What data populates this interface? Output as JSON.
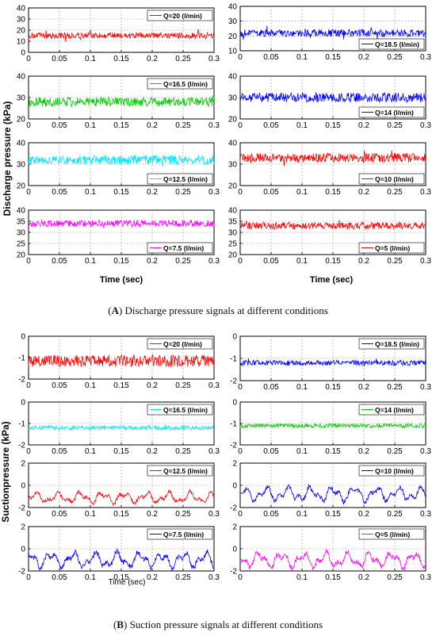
{
  "captions": {
    "a_label": "A",
    "a_text": " Discharge pressure signals at different conditions",
    "b_label": "B",
    "b_text": " Suction pressure signals at different conditions"
  },
  "shared_labels": {
    "discharge_ylabel": "Discharge pressure (kPa)",
    "suction_ylabel": "Suctionpressure (kPa)",
    "xlabel": "Time (sec)"
  },
  "chart_data": [
    {
      "type": "line",
      "legend": "Q=20 (l/min)",
      "color": "#ff0000",
      "xlim": [
        0,
        0.3
      ],
      "ylim": [
        0,
        40
      ],
      "yticks": [
        0,
        10,
        20,
        30,
        40
      ],
      "xticks": [
        0,
        0.05,
        0.1,
        0.15,
        0.2,
        0.25,
        0.3
      ],
      "mean": 15,
      "amp": 2.8,
      "spike": 12,
      "series": [
        {
          "x": [
            0,
            0.3
          ],
          "y": [
            15,
            15
          ]
        }
      ]
    },
    {
      "type": "line",
      "legend": "Q=18.5 (l/min)",
      "color": "#0000ff",
      "xlim": [
        0,
        0.3
      ],
      "ylim": [
        10,
        40
      ],
      "yticks": [
        10,
        20,
        30,
        40
      ],
      "xticks": [
        0,
        0.05,
        0.1,
        0.15,
        0.2,
        0.25,
        0.3
      ],
      "mean": 22,
      "amp": 2.5,
      "spike": 6,
      "series": [
        {
          "x": [
            0,
            0.3
          ],
          "y": [
            22,
            22
          ]
        }
      ]
    },
    {
      "type": "line",
      "legend": "Q=16.5 (l/min)",
      "color": "#00cc00",
      "xlim": [
        0,
        0.3
      ],
      "ylim": [
        20,
        40
      ],
      "yticks": [
        20,
        30,
        40
      ],
      "xticks": [
        0,
        0.05,
        0.1,
        0.15,
        0.2,
        0.25,
        0.3
      ],
      "mean": 28,
      "amp": 2.2,
      "spike": 5,
      "series": [
        {
          "x": [
            0,
            0.3
          ],
          "y": [
            28,
            28
          ]
        }
      ]
    },
    {
      "type": "line",
      "legend": "Q=14 (l/min)",
      "color": "#0000ff",
      "xlim": [
        0,
        0.3
      ],
      "ylim": [
        20,
        40
      ],
      "yticks": [
        20,
        30,
        40
      ],
      "xticks": [
        0,
        0.05,
        0.1,
        0.15,
        0.2,
        0.25,
        0.3
      ],
      "mean": 30,
      "amp": 2.2,
      "spike": 5,
      "series": [
        {
          "x": [
            0,
            0.3
          ],
          "y": [
            30,
            30
          ]
        }
      ]
    },
    {
      "type": "line",
      "legend": "Q=12.5 (l/min)",
      "color": "#00e5ff",
      "xlim": [
        0,
        0.3
      ],
      "ylim": [
        20,
        40
      ],
      "yticks": [
        20,
        30,
        40
      ],
      "xticks": [
        0,
        0.05,
        0.1,
        0.15,
        0.2,
        0.25,
        0.3
      ],
      "mean": 32,
      "amp": 2.2,
      "spike": 5,
      "series": [
        {
          "x": [
            0,
            0.3
          ],
          "y": [
            32,
            32
          ]
        }
      ]
    },
    {
      "type": "line",
      "legend": "Q=10 (l/min)",
      "color": "#ff0000",
      "xlim": [
        0,
        0.3
      ],
      "ylim": [
        20,
        40
      ],
      "yticks": [
        20,
        30,
        40
      ],
      "xticks": [
        0,
        0.05,
        0.1,
        0.15,
        0.2,
        0.25,
        0.3
      ],
      "mean": 33,
      "amp": 2.2,
      "spike": 5,
      "series": [
        {
          "x": [
            0,
            0.3
          ],
          "y": [
            33,
            33
          ]
        }
      ]
    },
    {
      "type": "line",
      "legend": "Q=7.5 (l/min)",
      "color": "#ff00ff",
      "xlim": [
        0,
        0.3
      ],
      "ylim": [
        20,
        40
      ],
      "yticks": [
        20,
        25,
        30,
        35,
        40
      ],
      "xticks": [
        0,
        0.05,
        0.1,
        0.15,
        0.2,
        0.25,
        0.3
      ],
      "mean": 34,
      "amp": 1.5,
      "spike": 3,
      "series": [
        {
          "x": [
            0,
            0.3
          ],
          "y": [
            34,
            34
          ]
        }
      ]
    },
    {
      "type": "line",
      "legend": "Q=5 (l/min)",
      "color": "#ff0000",
      "xlim": [
        0,
        0.3
      ],
      "ylim": [
        20,
        40
      ],
      "yticks": [
        20,
        25,
        30,
        35,
        40
      ],
      "xticks": [
        0,
        0.05,
        0.1,
        0.15,
        0.2,
        0.25,
        0.3
      ],
      "mean": 33,
      "amp": 1.6,
      "spike": 3,
      "series": [
        {
          "x": [
            0,
            0.3
          ],
          "y": [
            33,
            33
          ]
        }
      ]
    },
    {
      "type": "line",
      "legend": "Q=20 (l/min)",
      "color": "#ff0000",
      "xlim": [
        0,
        0.3
      ],
      "ylim": [
        -2,
        0
      ],
      "yticks": [
        -2,
        -1,
        0
      ],
      "xticks": [
        0,
        0.05,
        0.1,
        0.15,
        0.2,
        0.25,
        0.3
      ],
      "mean": -1.15,
      "amp": 0.28,
      "spike": 0.4,
      "series": [
        {
          "x": [
            0,
            0.3
          ],
          "y": [
            -1.15,
            -1.15
          ]
        }
      ]
    },
    {
      "type": "line",
      "legend": "Q=18.5 (l/min)",
      "color": "#0000ff",
      "xlim": [
        0,
        0.3
      ],
      "ylim": [
        -2,
        0
      ],
      "yticks": [
        -2,
        -1,
        0
      ],
      "xticks": [
        0,
        0.05,
        0.1,
        0.15,
        0.2,
        0.25,
        0.3
      ],
      "mean": -1.2,
      "amp": 0.12,
      "spike": 0.2,
      "series": [
        {
          "x": [
            0,
            0.3
          ],
          "y": [
            -1.2,
            -1.2
          ]
        }
      ]
    },
    {
      "type": "line",
      "legend": "Q=16.5 (l/min)",
      "color": "#00e5ff",
      "xlim": [
        0,
        0.3
      ],
      "ylim": [
        -2,
        0
      ],
      "yticks": [
        -2,
        -1,
        0
      ],
      "xticks": [
        0,
        0.05,
        0.1,
        0.15,
        0.2,
        0.25,
        0.3
      ],
      "mean": -1.2,
      "amp": 0.1,
      "spike": 0.15,
      "series": [
        {
          "x": [
            0,
            0.3
          ],
          "y": [
            -1.2,
            -1.2
          ]
        }
      ]
    },
    {
      "type": "line",
      "legend": "Q=14 (l/min)",
      "color": "#00cc00",
      "xlim": [
        0,
        0.3
      ],
      "ylim": [
        -2,
        0
      ],
      "yticks": [
        -2,
        -1,
        0
      ],
      "xticks": [
        0,
        0.05,
        0.1,
        0.15,
        0.2,
        0.25,
        0.3
      ],
      "mean": -1.1,
      "amp": 0.1,
      "spike": 0.15,
      "series": [
        {
          "x": [
            0,
            0.3
          ],
          "y": [
            -1.1,
            -1.1
          ]
        }
      ]
    },
    {
      "type": "line",
      "legend": "Q=12.5 (l/min)",
      "color": "#ff0000",
      "xlim": [
        0,
        0.3
      ],
      "ylim": [
        -2,
        2
      ],
      "yticks": [
        -2,
        0,
        2
      ],
      "xticks": [
        0,
        0.05,
        0.1,
        0.15,
        0.2,
        0.25,
        0.3
      ],
      "mean": -1.1,
      "amp": 0.35,
      "spike": 0.3,
      "series": [
        {
          "x": [
            0,
            0.3
          ],
          "y": [
            -1.1,
            -1.1
          ]
        }
      ]
    },
    {
      "type": "line",
      "legend": "Q=10 (l/min)",
      "color": "#0000ff",
      "xlim": [
        0,
        0.3
      ],
      "ylim": [
        -2,
        2
      ],
      "yticks": [
        -2,
        0,
        2
      ],
      "xticks": [
        0,
        0.05,
        0.1,
        0.15,
        0.2,
        0.25,
        0.3
      ],
      "mean": -0.8,
      "amp": 0.45,
      "spike": 0.6,
      "series": [
        {
          "x": [
            0,
            0.3
          ],
          "y": [
            -0.8,
            -0.8
          ]
        }
      ]
    },
    {
      "type": "line",
      "legend": "Q=7.5 (l/min)",
      "color": "#0000ff",
      "xlim": [
        0,
        0.3
      ],
      "ylim": [
        -2,
        2
      ],
      "yticks": [
        -2,
        0,
        2
      ],
      "xticks": [
        0,
        0.05,
        0.1,
        0.15,
        0.2,
        0.25,
        0.3
      ],
      "mean": -1.0,
      "amp": 0.5,
      "spike": 0.8,
      "series": [
        {
          "x": [
            0,
            0.3
          ],
          "y": [
            -1.0,
            -1.0
          ]
        }
      ]
    },
    {
      "type": "line",
      "legend": "Q=5 (l/min)",
      "color": "#ff00ff",
      "xlim": [
        0,
        0.3
      ],
      "ylim": [
        -2,
        2
      ],
      "yticks": [
        -2,
        0,
        2
      ],
      "xticks": [
        0,
        0.1,
        0.15,
        0.2,
        0.25,
        0.3
      ],
      "mean": -1.0,
      "amp": 0.5,
      "spike": 0.8,
      "series": [
        {
          "x": [
            0,
            0.3
          ],
          "y": [
            -1.0,
            -1.0
          ]
        }
      ]
    }
  ]
}
